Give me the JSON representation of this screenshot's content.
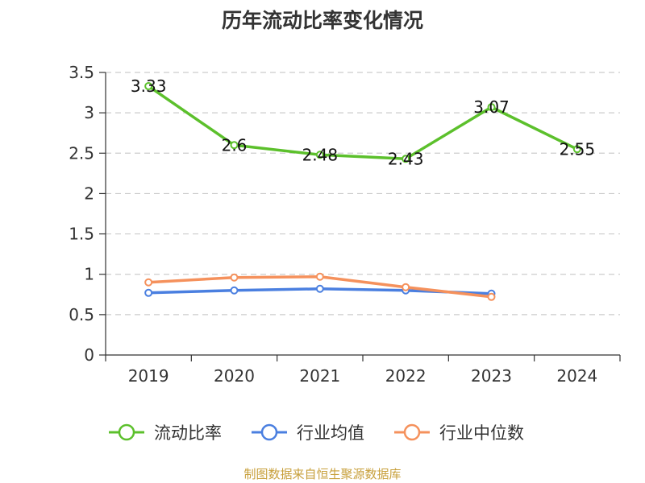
{
  "title": "历年流动比率变化情况",
  "source": "制图数据来自恒生聚源数据库",
  "chart_data": {
    "type": "line",
    "categories": [
      "2019",
      "2020",
      "2021",
      "2022",
      "2023",
      "2024"
    ],
    "ylim": [
      0,
      3.5
    ],
    "yticks": [
      "0",
      "0.5",
      "1",
      "1.5",
      "2",
      "2.5",
      "3",
      "3.5"
    ],
    "grid": true,
    "legend_position": "bottom",
    "series": [
      {
        "name": "流动比率",
        "color": "#5cc02c",
        "values": [
          3.33,
          2.6,
          2.48,
          2.43,
          3.07,
          2.55
        ],
        "labels": [
          "3.33",
          "2.6",
          "2.48",
          "2.43",
          "3.07",
          "2.55"
        ]
      },
      {
        "name": "行业均值",
        "color": "#4a7fe0",
        "values": [
          0.77,
          0.8,
          0.82,
          0.8,
          0.76,
          null
        ]
      },
      {
        "name": "行业中位数",
        "color": "#f5915c",
        "values": [
          0.9,
          0.96,
          0.97,
          0.84,
          0.72,
          null
        ]
      }
    ]
  }
}
